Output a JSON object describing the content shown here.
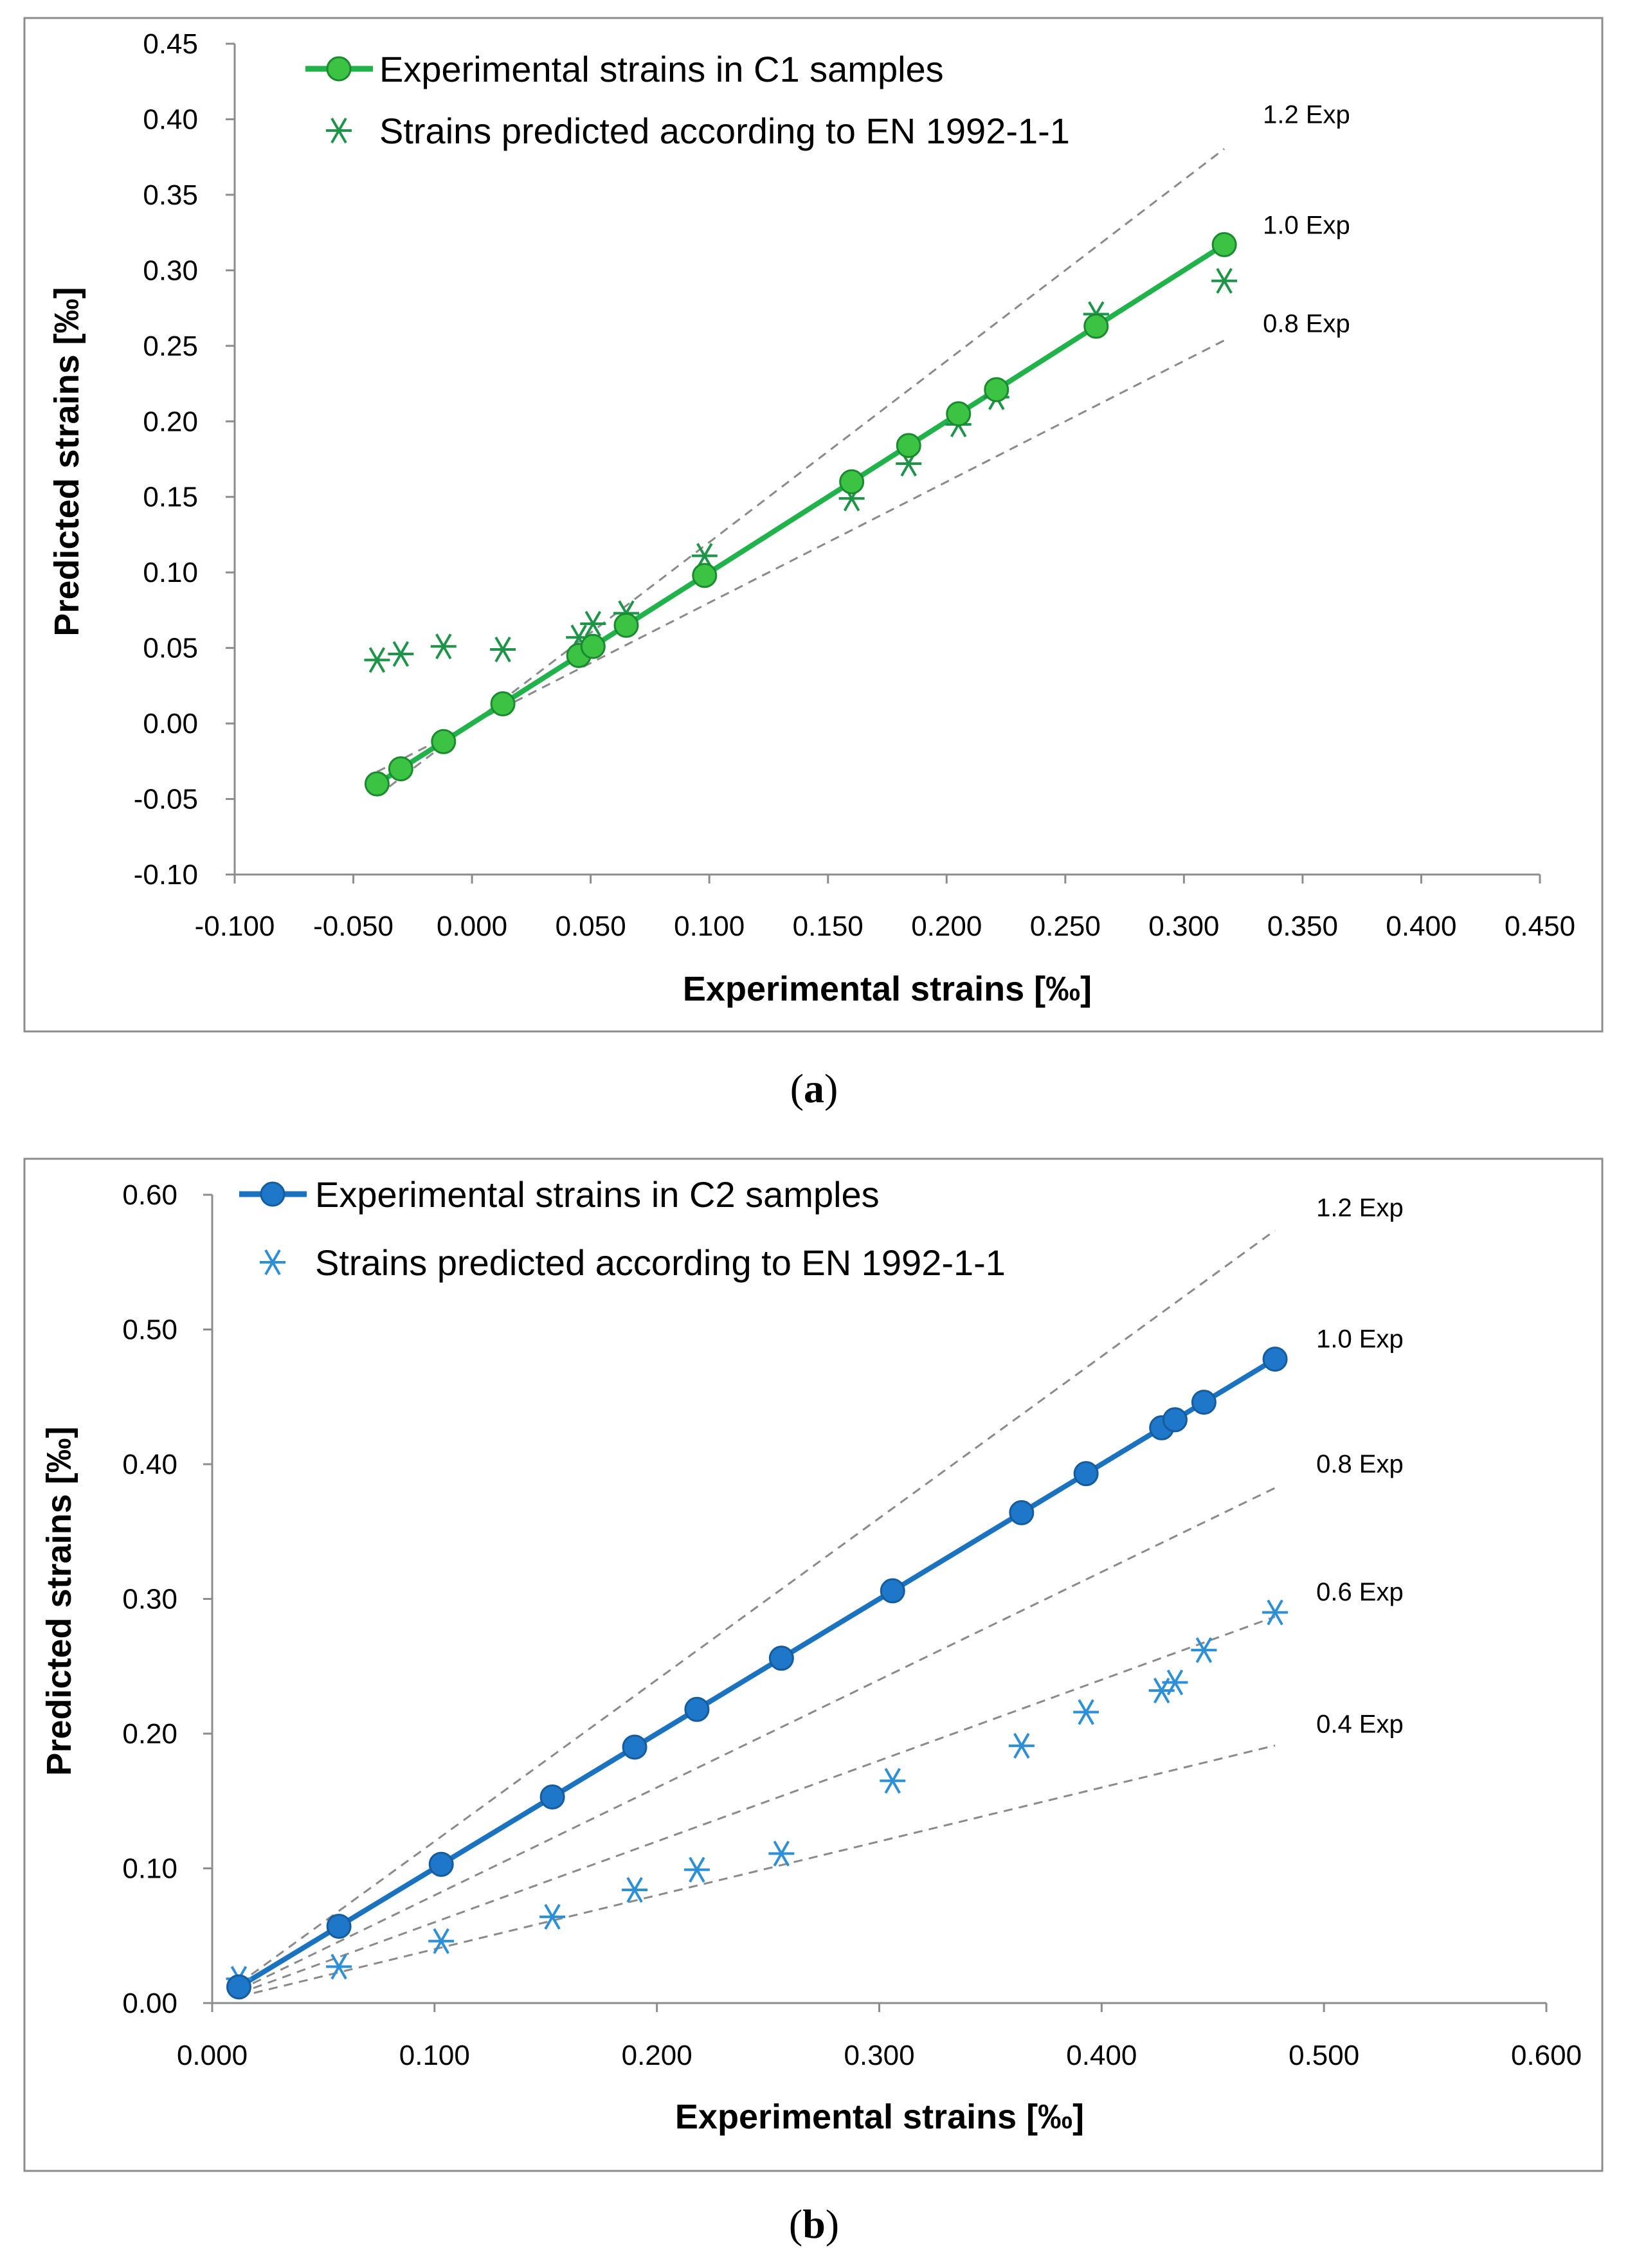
{
  "chart_data": [
    {
      "id": "a",
      "type": "line+scatter",
      "caption_letter": "a",
      "caption_open": "(",
      "caption_close": ")",
      "xlabel": "Experimental strains [‰]",
      "ylabel": "Predicted strains [‰]",
      "xlim": [
        -0.1,
        0.45
      ],
      "ylim": [
        -0.1,
        0.45
      ],
      "x_ticks": [
        "-0.100",
        "-0.050",
        "0.000",
        "0.050",
        "0.100",
        "0.150",
        "0.200",
        "0.250",
        "0.300",
        "0.350",
        "0.400",
        "0.450"
      ],
      "y_ticks": [
        "-0.10",
        "-0.05",
        "0.00",
        "0.05",
        "0.10",
        "0.15",
        "0.20",
        "0.25",
        "0.30",
        "0.35",
        "0.40",
        "0.45"
      ],
      "legend": [
        "Experimental strains in C1 samples",
        "Strains predicted according to EN 1992-1-1"
      ],
      "colors": {
        "line": "#22b24c",
        "marker_fill": "#3cc343",
        "marker_stroke": "#1a8a2e",
        "star": "#1e9448"
      },
      "reference_lines": [
        {
          "label": "1.2 Exp",
          "factor": 1.2,
          "x_start": -0.04,
          "x_end": 0.317
        },
        {
          "label": "1.0 Exp",
          "factor": 1.0,
          "x_start": -0.04,
          "x_end": 0.317
        },
        {
          "label": "0.8 Exp",
          "factor": 0.8,
          "x_start": -0.04,
          "x_end": 0.317
        }
      ],
      "series": [
        {
          "name": "Experimental strains in C1 samples",
          "x": [
            -0.04,
            -0.03,
            -0.012,
            0.013,
            0.045,
            0.051,
            0.065,
            0.098,
            0.16,
            0.184,
            0.205,
            0.221,
            0.263,
            0.317
          ],
          "y": [
            -0.04,
            -0.03,
            -0.012,
            0.013,
            0.045,
            0.051,
            0.065,
            0.098,
            0.16,
            0.184,
            0.205,
            0.221,
            0.263,
            0.317
          ]
        },
        {
          "name": "Strains predicted according to EN 1992-1-1",
          "x": [
            -0.04,
            -0.03,
            -0.012,
            0.013,
            0.045,
            0.051,
            0.065,
            0.098,
            0.16,
            0.184,
            0.205,
            0.221,
            0.263,
            0.317
          ],
          "y": [
            0.042,
            0.046,
            0.051,
            0.049,
            0.057,
            0.066,
            0.073,
            0.111,
            0.149,
            0.172,
            0.198,
            0.216,
            0.271,
            0.293
          ]
        }
      ]
    },
    {
      "id": "b",
      "type": "line+scatter",
      "caption_letter": "b",
      "caption_open": "(",
      "caption_close": ")",
      "xlabel": "Experimental strains [‰]",
      "ylabel": "Predicted strains [‰]",
      "xlim": [
        0.0,
        0.6
      ],
      "ylim": [
        0.0,
        0.6
      ],
      "x_ticks": [
        "0.000",
        "0.100",
        "0.200",
        "0.300",
        "0.400",
        "0.500",
        "0.600"
      ],
      "y_ticks": [
        "0.00",
        "0.10",
        "0.20",
        "0.30",
        "0.40",
        "0.50",
        "0.60"
      ],
      "legend": [
        "Experimental strains in C2 samples",
        "Strains predicted according to EN 1992-1-1"
      ],
      "colors": {
        "line": "#1b72bf",
        "marker_fill": "#1f77c9",
        "marker_stroke": "#155c9e",
        "star": "#2d8fd6"
      },
      "reference_lines": [
        {
          "label": "1.2 Exp",
          "factor": 1.2,
          "x_start": 0.012,
          "x_end": 0.478
        },
        {
          "label": "1.0 Exp",
          "factor": 1.0,
          "x_start": 0.012,
          "x_end": 0.478
        },
        {
          "label": "0.8 Exp",
          "factor": 0.8,
          "x_start": 0.012,
          "x_end": 0.478
        },
        {
          "label": "0.6 Exp",
          "factor": 0.6,
          "x_start": 0.012,
          "x_end": 0.478
        },
        {
          "label": "0.4 Exp",
          "factor": 0.4,
          "x_start": 0.012,
          "x_end": 0.478
        }
      ],
      "series": [
        {
          "name": "Experimental strains in C2 samples",
          "x": [
            0.012,
            0.057,
            0.103,
            0.153,
            0.19,
            0.218,
            0.256,
            0.306,
            0.364,
            0.393,
            0.427,
            0.433,
            0.446,
            0.478
          ],
          "y": [
            0.012,
            0.057,
            0.103,
            0.153,
            0.19,
            0.218,
            0.256,
            0.306,
            0.364,
            0.393,
            0.427,
            0.433,
            0.446,
            0.478
          ]
        },
        {
          "name": "Strains predicted according to EN 1992-1-1",
          "x": [
            0.012,
            0.057,
            0.103,
            0.153,
            0.19,
            0.218,
            0.256,
            0.306,
            0.364,
            0.393,
            0.427,
            0.433,
            0.446,
            0.478
          ],
          "y": [
            0.018,
            0.027,
            0.046,
            0.064,
            0.084,
            0.099,
            0.111,
            0.165,
            0.191,
            0.216,
            0.232,
            0.238,
            0.262,
            0.29
          ]
        }
      ]
    }
  ]
}
